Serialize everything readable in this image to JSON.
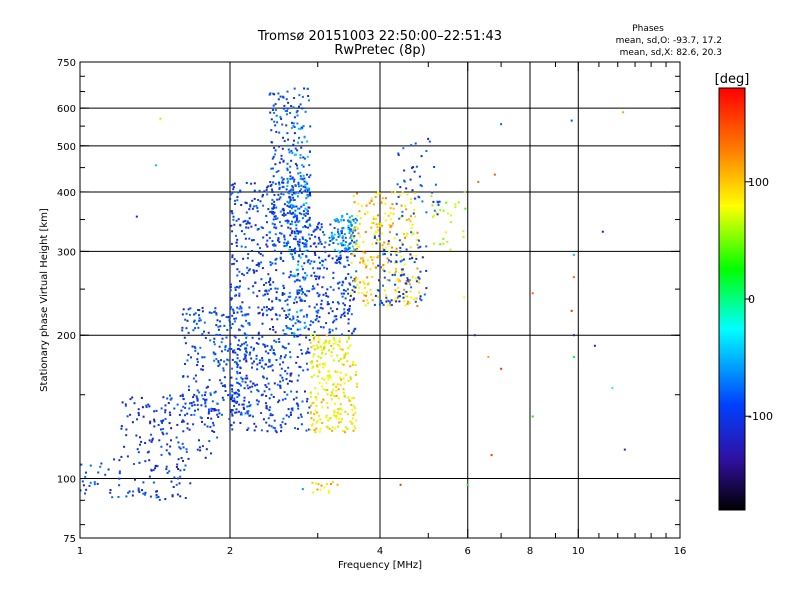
{
  "chart_data": {
    "type": "scatter",
    "title": "Tromsø 20151003 22:50:00–22:51:43",
    "subtitle": "RwPretec (8p)",
    "xlabel": "Frequency [MHz]",
    "ylabel": "Stationary phase Virtual Height [km]",
    "x_scale": "log",
    "y_scale": "log",
    "xlim": [
      1,
      16
    ],
    "ylim": [
      75,
      750
    ],
    "x_ticks": [
      1,
      2,
      4,
      6,
      8,
      10,
      16
    ],
    "x_tick_labels": [
      "1",
      "2",
      "4",
      "6",
      "8",
      "10",
      "16"
    ],
    "x_grid": [
      2,
      4,
      6,
      8,
      10
    ],
    "y_ticks": [
      75,
      100,
      200,
      300,
      400,
      500,
      600,
      750
    ],
    "y_tick_labels": [
      "75",
      "100",
      "200",
      "300",
      "400",
      "500",
      "600",
      "750"
    ],
    "y_grid": [
      100,
      200,
      300,
      400,
      500,
      600
    ],
    "grid": true,
    "stats": {
      "heading": "Phases",
      "line_o": "mean, sd,O: -93.7, 17.2",
      "line_x": "mean, sd,X:  82.6, 20.3"
    },
    "colorbar": {
      "unit": "[deg]",
      "range": [
        -180,
        180
      ],
      "ticks": [
        100,
        0,
        -100
      ],
      "tick_labels": [
        "100",
        "0",
        "-100"
      ],
      "colors": [
        "#ff0000",
        "#ff8000",
        "#ffff00",
        "#00ff00",
        "#00ffff",
        "#0040ff",
        "#3010a0",
        "#000000"
      ]
    },
    "clusters": [
      {
        "freq": [
          1.0,
          1.7
        ],
        "height": [
          90,
          110
        ],
        "phase": -95,
        "count": 90
      },
      {
        "freq": [
          1.2,
          1.9
        ],
        "height": [
          110,
          150
        ],
        "phase": -100,
        "count": 140
      },
      {
        "freq": [
          1.6,
          2.2
        ],
        "height": [
          130,
          230
        ],
        "phase": -90,
        "count": 260
      },
      {
        "freq": [
          2.0,
          2.9
        ],
        "height": [
          125,
          420
        ],
        "phase": -95,
        "count": 700
      },
      {
        "freq": [
          2.4,
          2.9
        ],
        "height": [
          300,
          660
        ],
        "phase": -85,
        "count": 230
      },
      {
        "freq": [
          2.6,
          2.9
        ],
        "height": [
          200,
          560
        ],
        "phase": -60,
        "count": 110
      },
      {
        "freq": [
          2.9,
          3.6
        ],
        "height": [
          125,
          200
        ],
        "phase": 100,
        "count": 240
      },
      {
        "freq": [
          2.9,
          3.6
        ],
        "height": [
          200,
          350
        ],
        "phase": -95,
        "count": 220
      },
      {
        "freq": [
          3.2,
          3.6
        ],
        "height": [
          300,
          360
        ],
        "phase": -55,
        "count": 80
      },
      {
        "freq": [
          3.5,
          4.8
        ],
        "height": [
          230,
          400
        ],
        "phase": 110,
        "count": 240
      },
      {
        "freq": [
          3.9,
          5.0
        ],
        "height": [
          230,
          330
        ],
        "phase": -95,
        "count": 90
      },
      {
        "freq": [
          4.3,
          5.3
        ],
        "height": [
          350,
          520
        ],
        "phase": -90,
        "count": 45
      },
      {
        "freq": [
          5.0,
          6.0
        ],
        "height": [
          300,
          400
        ],
        "phase": 75,
        "count": 25
      },
      {
        "freq": [
          2.9,
          3.3
        ],
        "height": [
          93,
          99
        ],
        "phase": 110,
        "count": 14
      }
    ],
    "outliers": [
      {
        "x": 1.45,
        "y": 570,
        "phase": 110
      },
      {
        "x": 1.42,
        "y": 455,
        "phase": -40
      },
      {
        "x": 1.3,
        "y": 355,
        "phase": -120
      },
      {
        "x": 7.0,
        "y": 555,
        "phase": -80
      },
      {
        "x": 9.7,
        "y": 565,
        "phase": -85
      },
      {
        "x": 12.3,
        "y": 588,
        "phase": 120
      },
      {
        "x": 6.3,
        "y": 420,
        "phase": 140
      },
      {
        "x": 6.8,
        "y": 435,
        "phase": 150
      },
      {
        "x": 11.2,
        "y": 330,
        "phase": -120
      },
      {
        "x": 9.8,
        "y": 295,
        "phase": -40
      },
      {
        "x": 9.8,
        "y": 265,
        "phase": 140
      },
      {
        "x": 9.7,
        "y": 225,
        "phase": 160
      },
      {
        "x": 9.8,
        "y": 200,
        "phase": -120
      },
      {
        "x": 9.8,
        "y": 180,
        "phase": 20
      },
      {
        "x": 10.8,
        "y": 190,
        "phase": -110
      },
      {
        "x": 11.7,
        "y": 155,
        "phase": -20
      },
      {
        "x": 12.4,
        "y": 115,
        "phase": -110
      },
      {
        "x": 8.1,
        "y": 245,
        "phase": 140
      },
      {
        "x": 8.1,
        "y": 135,
        "phase": 30
      },
      {
        "x": 6.7,
        "y": 112,
        "phase": 160
      },
      {
        "x": 6.6,
        "y": 180,
        "phase": 120
      },
      {
        "x": 7.0,
        "y": 170,
        "phase": 160
      },
      {
        "x": 6.2,
        "y": 200,
        "phase": -110
      },
      {
        "x": 5.9,
        "y": 240,
        "phase": 100
      },
      {
        "x": 6.0,
        "y": 97,
        "phase": 30
      },
      {
        "x": 4.4,
        "y": 97,
        "phase": 160
      },
      {
        "x": 2.8,
        "y": 95,
        "phase": -60
      }
    ]
  }
}
